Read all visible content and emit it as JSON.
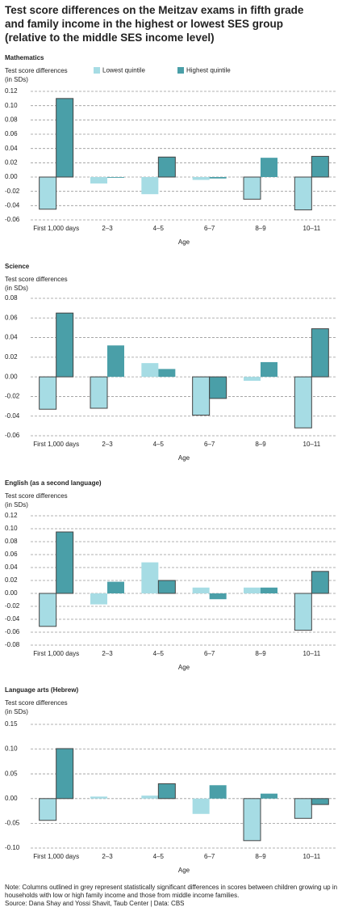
{
  "header": {
    "title": "Test score differences on the Meitzav exams in fifth grade and family income in the highest or lowest SES group (relative to the middle SES income level)"
  },
  "footer": {
    "note": "Note: Columns outlined in grey represent statistically significant differences in scores between children growing up in households with low or high family income and those from middle income families.",
    "source": "Source: Dana Shay and Yossi Shavit, Taub Center | Data: CBS"
  },
  "chart_data": [
    {
      "type": "bar",
      "title": "Mathematics",
      "ylabel": [
        "Test score differences",
        "(in SDs)"
      ],
      "xlabel": "Age",
      "legend": true,
      "grid": true,
      "categories": [
        "First 1,000 days",
        "2–3",
        "4–5",
        "6–7",
        "8–9",
        "10–11"
      ],
      "series": [
        {
          "name": "Lowest quintile",
          "color": "#a6dce4",
          "values": [
            -0.045,
            -0.009,
            -0.024,
            -0.004,
            -0.031,
            -0.046
          ],
          "outlined": [
            true,
            false,
            false,
            false,
            true,
            true
          ]
        },
        {
          "name": "Highest quintile",
          "color": "#4a9fa8",
          "values": [
            0.11,
            -0.001,
            0.028,
            -0.002,
            0.027,
            0.029
          ],
          "outlined": [
            true,
            false,
            true,
            false,
            false,
            true
          ]
        }
      ],
      "ylim": [
        -0.06,
        0.12
      ],
      "yticks": [
        0.12,
        {
          "value": 0.1,
          "label": "0.10"
        },
        0.08,
        0.06,
        0.04,
        0.02,
        {
          "value": 0,
          "label": "0.00"
        },
        -0.02,
        -0.04,
        -0.06
      ]
    },
    {
      "type": "bar",
      "title": "Science",
      "ylabel": [
        "Test score differences",
        "(in SDs)"
      ],
      "xlabel": "Age",
      "legend": false,
      "grid": true,
      "categories": [
        "First 1,000 days",
        "2–3",
        "4–5",
        "6–7",
        "8–9",
        "10–11"
      ],
      "series": [
        {
          "name": "Lowest quintile",
          "color": "#a6dce4",
          "values": [
            -0.033,
            -0.032,
            0.014,
            -0.039,
            -0.004,
            -0.052
          ],
          "outlined": [
            true,
            true,
            false,
            true,
            false,
            true
          ]
        },
        {
          "name": "Highest quintile",
          "color": "#4a9fa8",
          "values": [
            0.065,
            0.032,
            0.008,
            -0.022,
            0.015,
            0.049
          ],
          "outlined": [
            true,
            false,
            false,
            true,
            false,
            true
          ]
        }
      ],
      "ylim": [
        -0.06,
        0.08
      ],
      "yticks": [
        0.08,
        0.06,
        0.04,
        0.02,
        {
          "value": 0,
          "label": "0.00"
        },
        -0.02,
        -0.04,
        -0.06
      ]
    },
    {
      "type": "bar",
      "title": "English (as a second language)",
      "ylabel": [
        "Test score differences",
        "(in SDs)"
      ],
      "xlabel": "Age",
      "legend": false,
      "grid": true,
      "categories": [
        "First 1,000 days",
        "2–3",
        "4–5",
        "6–7",
        "8–9",
        "10–11"
      ],
      "series": [
        {
          "name": "Lowest quintile",
          "color": "#a6dce4",
          "values": [
            -0.051,
            -0.017,
            0.048,
            0.009,
            0.009,
            -0.057
          ],
          "outlined": [
            true,
            false,
            false,
            false,
            false,
            true
          ]
        },
        {
          "name": "Highest quintile",
          "color": "#4a9fa8",
          "values": [
            0.095,
            0.018,
            0.02,
            -0.009,
            0.009,
            0.034
          ],
          "outlined": [
            true,
            false,
            true,
            false,
            false,
            true
          ]
        }
      ],
      "ylim": [
        -0.08,
        0.12
      ],
      "yticks": [
        0.12,
        {
          "value": 0.1,
          "label": "0.10"
        },
        0.08,
        0.06,
        0.04,
        0.02,
        {
          "value": 0,
          "label": "0.00"
        },
        -0.02,
        -0.04,
        -0.06,
        -0.08
      ]
    },
    {
      "type": "bar",
      "title": "Language arts (Hebrew)",
      "ylabel": [
        "Test score differences",
        "(in SDs)"
      ],
      "xlabel": "Age",
      "legend": false,
      "grid": true,
      "categories": [
        "First 1,000 days",
        "2–3",
        "4–5",
        "6–7",
        "8–9",
        "10–11"
      ],
      "series": [
        {
          "name": "Lowest quintile",
          "color": "#a6dce4",
          "values": [
            -0.044,
            0.004,
            0.006,
            -0.031,
            -0.085,
            -0.04
          ],
          "outlined": [
            true,
            false,
            false,
            false,
            true,
            true
          ]
        },
        {
          "name": "Highest quintile",
          "color": "#4a9fa8",
          "values": [
            0.101,
            0.0,
            0.03,
            0.027,
            0.01,
            -0.012
          ],
          "outlined": [
            true,
            false,
            true,
            false,
            false,
            true
          ]
        }
      ],
      "ylim": [
        -0.1,
        0.15
      ],
      "yticks": [
        0.15,
        {
          "value": 0.1,
          "label": "0.10"
        },
        0.05,
        {
          "value": 0,
          "label": "0.00"
        },
        -0.05,
        {
          "value": -0.1,
          "label": "-0.10"
        }
      ]
    }
  ]
}
